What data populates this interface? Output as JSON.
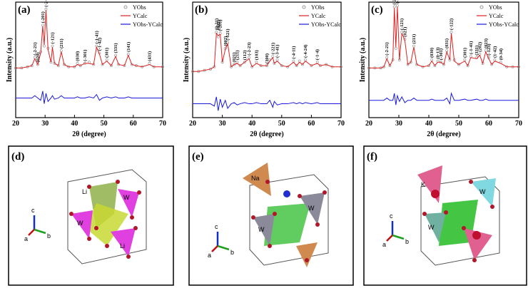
{
  "chart_data": [
    {
      "type": "line",
      "label": "(a)",
      "xlabel": "2θ (degree)",
      "ylabel": "Intensity (a.u.)",
      "xlim": [
        20,
        70
      ],
      "ylim": [
        0,
        100
      ],
      "xticks": [
        20,
        30,
        40,
        50,
        60,
        70
      ],
      "x": [
        20,
        22,
        24,
        25.5,
        26.5,
        27.5,
        28.5,
        29.2,
        29.7,
        30.3,
        31,
        32,
        32.5,
        33.2,
        34.5,
        35.5,
        36.5,
        38,
        40,
        41,
        42,
        43.5,
        45,
        46.5,
        47.5,
        48.5,
        49.5,
        51,
        52.5,
        54,
        55,
        57,
        58.3,
        59.5,
        61,
        63,
        65.5,
        67,
        70
      ],
      "series": [
        {
          "name": "YObs",
          "color": "#999999",
          "style": "points",
          "values": [
            43,
            43,
            44,
            45,
            52,
            46,
            57,
            80,
            62,
            94,
            60,
            48,
            62,
            47,
            45,
            58,
            46,
            44,
            44,
            47,
            45,
            47,
            48,
            46,
            62,
            56,
            46,
            50,
            45,
            54,
            46,
            45,
            55,
            46,
            45,
            44,
            47,
            44,
            44
          ]
        },
        {
          "name": "YCalc",
          "color": "#e02020",
          "style": "line",
          "values": [
            43,
            43,
            44,
            45,
            51,
            46,
            56,
            79,
            63,
            93,
            59,
            48,
            61,
            47,
            45,
            57,
            46,
            44,
            44,
            46,
            45,
            47,
            47,
            46,
            61,
            55,
            46,
            49,
            45,
            53,
            46,
            45,
            54,
            46,
            45,
            44,
            46,
            44,
            44
          ]
        },
        {
          "name": "YObs-YCalc",
          "color": "#1a1adf",
          "style": "line",
          "values": [
            17,
            17,
            17,
            17,
            19,
            17,
            15,
            23,
            12,
            21,
            14,
            17,
            19,
            16,
            17,
            19,
            17,
            17,
            17,
            18,
            17,
            17,
            18,
            17,
            20,
            15,
            17,
            18,
            17,
            18,
            17,
            17,
            18,
            17,
            17,
            17,
            17,
            17,
            17
          ]
        }
      ],
      "annotations": [
        {
          "label": "(-2-21)",
          "x": 26.5
        },
        {
          "label": "(020)",
          "x": 27.5
        },
        {
          "label": "(-201)",
          "x": 29.2
        },
        {
          "label": "(-2-22)",
          "x": 30.3
        },
        {
          "label": "(-121)",
          "x": 32.5
        },
        {
          "label": "(211)",
          "x": 35.5
        },
        {
          "label": "(030)",
          "x": 41
        },
        {
          "label": "(-301)",
          "x": 43.5
        },
        {
          "label": "(-1-41)",
          "x": 47.5
        },
        {
          "label": "(-1-42)",
          "x": 48.5
        },
        {
          "label": "(301)",
          "x": 51
        },
        {
          "label": "(331)",
          "x": 54
        },
        {
          "label": "(141)",
          "x": 58.3
        },
        {
          "label": "(431)",
          "x": 65.5
        }
      ]
    },
    {
      "type": "line",
      "label": "(b)",
      "xlabel": "2θ (degree)",
      "ylabel": "Intensity (a.u.)",
      "xlim": [
        20,
        70
      ],
      "ylim": [
        0,
        100
      ],
      "xticks": [
        20,
        30,
        40,
        50,
        60,
        70
      ],
      "x": [
        20,
        22,
        24,
        26,
        27.3,
        28,
        28.6,
        29.3,
        30,
        31,
        31.8,
        33,
        34,
        35,
        36,
        37.5,
        39,
        40,
        41.5,
        43,
        45,
        46,
        47,
        47.5,
        48.5,
        50,
        52,
        54,
        55,
        56,
        57,
        58,
        60,
        62,
        63,
        65,
        67,
        70
      ],
      "series": [
        {
          "name": "YObs",
          "color": "#999999",
          "style": "points",
          "values": [
            40,
            40,
            41,
            42,
            44,
            74,
            70,
            73,
            48,
            60,
            65,
            44,
            46,
            48,
            45,
            48,
            52,
            44,
            48,
            45,
            45,
            50,
            53,
            47,
            50,
            45,
            44,
            49,
            45,
            49,
            46,
            50,
            45,
            48,
            45,
            46,
            44,
            44
          ]
        },
        {
          "name": "YCalc",
          "color": "#e02020",
          "style": "line",
          "values": [
            40,
            40,
            41,
            42,
            44,
            73,
            71,
            72,
            48,
            59,
            64,
            44,
            46,
            47,
            45,
            48,
            51,
            44,
            47,
            45,
            45,
            49,
            52,
            47,
            49,
            45,
            44,
            48,
            45,
            48,
            46,
            49,
            45,
            47,
            45,
            46,
            44,
            44
          ]
        },
        {
          "name": "YObs-YCalc",
          "color": "#1a1adf",
          "style": "line",
          "values": [
            12,
            12,
            12,
            12,
            10,
            18,
            6,
            16,
            9,
            15,
            8,
            12,
            13,
            11,
            12,
            13,
            12,
            12,
            13,
            12,
            12,
            15,
            9,
            14,
            11,
            12,
            12,
            13,
            12,
            13,
            12,
            13,
            12,
            13,
            12,
            12,
            12,
            12
          ]
        }
      ],
      "annotations": [
        {
          "label": "(0-21)",
          "x": 28
        },
        {
          "label": "(002)",
          "x": 28.6
        },
        {
          "label": "(-201)",
          "x": 29.3
        },
        {
          "label": "(002)",
          "x": 31
        },
        {
          "label": "(-121)",
          "x": 31.8
        },
        {
          "label": "(021)",
          "x": 34
        },
        {
          "label": "(211)",
          "x": 35
        },
        {
          "label": "(112)",
          "x": 37.5
        },
        {
          "label": "(-2-23)",
          "x": 39
        },
        {
          "label": "(103)",
          "x": 41.5
        },
        {
          "label": "(300)",
          "x": 45
        },
        {
          "label": "(-221)",
          "x": 47
        },
        {
          "label": "(-3-41)",
          "x": 48.5
        },
        {
          "label": "(-4-11)",
          "x": 54
        },
        {
          "label": "(-4-24)",
          "x": 58
        },
        {
          "label": "(-1-4)",
          "x": 62
        }
      ]
    },
    {
      "type": "line",
      "label": "(c)",
      "xlabel": "2θ (degree)",
      "ylabel": "Intensity (a.u.)",
      "xlim": [
        20,
        70
      ],
      "ylim": [
        0,
        100
      ],
      "xticks": [
        20,
        30,
        40,
        50,
        60,
        70
      ],
      "x": [
        20,
        22,
        24,
        25,
        26,
        27,
        28,
        28.5,
        29,
        29.5,
        30.2,
        31,
        32,
        33,
        34,
        35,
        36,
        38,
        40,
        41,
        42,
        43,
        44,
        45,
        46,
        47,
        47.5,
        48.5,
        50,
        52,
        53,
        54,
        56,
        57,
        58,
        59,
        60,
        61,
        62,
        64,
        66,
        68,
        70
      ],
      "series": [
        {
          "name": "YObs",
          "color": "#999999",
          "style": "points",
          "values": [
            43,
            43,
            43,
            44,
            52,
            45,
            50,
            96,
            60,
            97,
            50,
            74,
            68,
            46,
            48,
            62,
            46,
            44,
            45,
            50,
            45,
            49,
            48,
            46,
            58,
            50,
            74,
            50,
            46,
            50,
            45,
            53,
            52,
            55,
            47,
            58,
            52,
            46,
            50,
            48,
            44,
            44,
            44
          ]
        },
        {
          "name": "YCalc",
          "color": "#e02020",
          "style": "line",
          "values": [
            43,
            43,
            43,
            44,
            51,
            45,
            50,
            95,
            61,
            96,
            50,
            73,
            67,
            46,
            48,
            61,
            46,
            44,
            45,
            49,
            45,
            48,
            48,
            46,
            57,
            50,
            73,
            49,
            46,
            49,
            45,
            52,
            51,
            54,
            47,
            57,
            51,
            46,
            49,
            47,
            44,
            44,
            44
          ]
        },
        {
          "name": "YObs-YCalc",
          "color": "#1a1adf",
          "style": "line",
          "values": [
            15,
            15,
            15,
            15,
            17,
            15,
            15,
            21,
            11,
            19,
            14,
            18,
            13,
            15,
            15,
            17,
            15,
            15,
            15,
            16,
            15,
            15,
            15,
            15,
            17,
            12,
            21,
            15,
            15,
            16,
            15,
            15,
            16,
            15,
            15,
            16,
            15,
            15,
            15,
            15,
            15,
            15,
            15
          ]
        }
      ],
      "annotations": [
        {
          "label": "(-2-21)",
          "x": 26
        },
        {
          "label": "(-201)",
          "x": 28.5
        },
        {
          "label": "(-2-22)",
          "x": 29.5
        },
        {
          "label": "(-121)",
          "x": 31
        },
        {
          "label": "(021)",
          "x": 32
        },
        {
          "label": "(211)",
          "x": 35
        },
        {
          "label": "(030)",
          "x": 41
        },
        {
          "label": "(0-13)",
          "x": 43
        },
        {
          "label": "(-301)",
          "x": 44
        },
        {
          "label": "(031)",
          "x": 46
        },
        {
          "label": "(-122)",
          "x": 47.5
        },
        {
          "label": "(301)",
          "x": 52
        },
        {
          "label": "(-1-41)",
          "x": 54
        },
        {
          "label": "(331)",
          "x": 56
        },
        {
          "label": "(202)",
          "x": 57
        },
        {
          "label": "(023)",
          "x": 59
        },
        {
          "label": "(-123)",
          "x": 60
        },
        {
          "label": "(1-42)",
          "x": 62
        },
        {
          "label": "(0-34)",
          "x": 64
        }
      ]
    }
  ],
  "structures": [
    {
      "label": "(d)",
      "atoms": [
        "Li",
        "W",
        "W",
        "Li"
      ],
      "axes": [
        "c",
        "a",
        "b"
      ]
    },
    {
      "label": "(e)",
      "atoms": [
        "Na",
        "W",
        "W"
      ],
      "axes": [
        "c",
        "a",
        "b"
      ]
    },
    {
      "label": "(f)",
      "atoms": [
        "K",
        "W",
        "W"
      ],
      "axes": [
        "c",
        "a",
        "b"
      ]
    }
  ]
}
